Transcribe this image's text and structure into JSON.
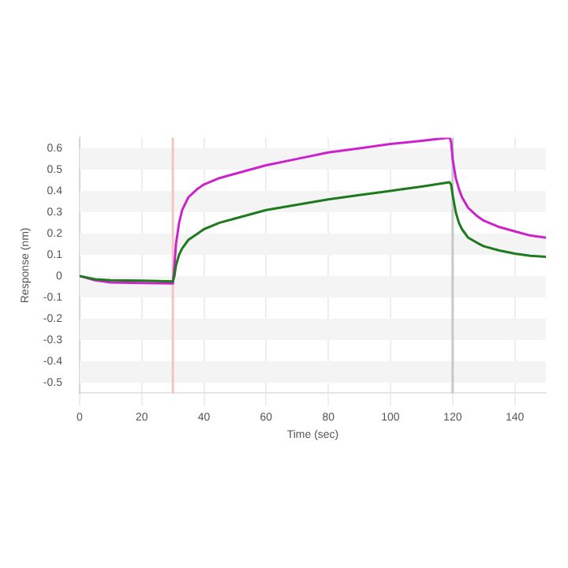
{
  "chart_data": {
    "type": "line",
    "xlabel": "Time (sec)",
    "ylabel": "Response (nm)",
    "xlim": [
      0,
      150
    ],
    "xticks": [
      0,
      20,
      40,
      60,
      80,
      100,
      120,
      140
    ],
    "ylim": [
      -0.55,
      0.65
    ],
    "yticks": [
      -0.5,
      -0.4,
      -0.3,
      -0.2,
      -0.1,
      0,
      0.1,
      0.2,
      0.3,
      0.4,
      0.5,
      0.6
    ],
    "grid": true,
    "marker": "none",
    "line_style": "solid",
    "ref_lines": [
      {
        "axis": "x",
        "value": 30,
        "color": "#f4c4c4"
      },
      {
        "axis": "x",
        "value": 120,
        "color": "#c8c8c8"
      }
    ],
    "series": [
      {
        "color": "#1e7a1e",
        "x": [
          0,
          5,
          10,
          20,
          30,
          30.5,
          31,
          32,
          33,
          35,
          38,
          40,
          45,
          50,
          60,
          70,
          80,
          90,
          100,
          110,
          119,
          119.5,
          120,
          121,
          122,
          123,
          125,
          128,
          130,
          135,
          140,
          145,
          150
        ],
        "values": [
          0,
          -0.015,
          -0.02,
          -0.022,
          -0.025,
          0,
          0.05,
          0.1,
          0.13,
          0.17,
          0.2,
          0.22,
          0.25,
          0.27,
          0.31,
          0.335,
          0.36,
          0.38,
          0.4,
          0.42,
          0.44,
          0.43,
          0.38,
          0.3,
          0.25,
          0.22,
          0.18,
          0.155,
          0.14,
          0.12,
          0.105,
          0.095,
          0.09
        ]
      },
      {
        "color": "#cc22cc",
        "x": [
          0,
          5,
          10,
          20,
          30,
          30.5,
          31,
          32,
          33,
          35,
          38,
          40,
          45,
          50,
          60,
          70,
          80,
          90,
          100,
          110,
          119,
          119.5,
          120,
          121,
          122,
          123,
          125,
          128,
          130,
          135,
          140,
          145,
          150
        ],
        "values": [
          0,
          -0.02,
          -0.03,
          -0.033,
          -0.035,
          0.05,
          0.15,
          0.25,
          0.31,
          0.37,
          0.41,
          0.43,
          0.46,
          0.48,
          0.52,
          0.55,
          0.58,
          0.6,
          0.62,
          0.635,
          0.65,
          0.63,
          0.55,
          0.46,
          0.41,
          0.37,
          0.32,
          0.28,
          0.26,
          0.23,
          0.21,
          0.19,
          0.18
        ]
      }
    ]
  }
}
